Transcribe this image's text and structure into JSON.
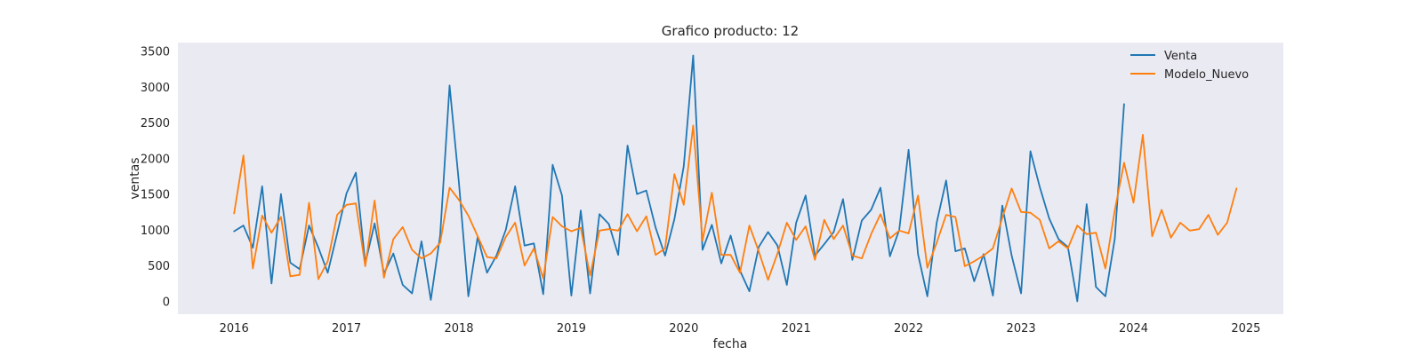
{
  "chart_data": {
    "type": "line",
    "title": "Grafico producto: 12",
    "xlabel": "fecha",
    "ylabel": "ventas",
    "x_ticks": [
      "2016",
      "2017",
      "2018",
      "2019",
      "2020",
      "2021",
      "2022",
      "2023",
      "2024",
      "2025"
    ],
    "y_ticks": [
      "0",
      "500",
      "1000",
      "1500",
      "2000",
      "2500",
      "3000",
      "3500"
    ],
    "ylim": [
      -180,
      3620
    ],
    "xlim": [
      "2015-07",
      "2025-05"
    ],
    "grid": false,
    "legend": "top-right",
    "x_start": "2016-01",
    "series": [
      {
        "name": "Venta",
        "color": "#1f77b4",
        "values": [
          980,
          1060,
          750,
          1610,
          250,
          1500,
          540,
          450,
          1060,
          750,
          400,
          950,
          1510,
          1800,
          530,
          1090,
          390,
          670,
          230,
          110,
          840,
          20,
          920,
          3020,
          1660,
          70,
          900,
          400,
          640,
          1000,
          1610,
          780,
          810,
          100,
          1910,
          1480,
          80,
          1270,
          110,
          1220,
          1080,
          650,
          2180,
          1500,
          1550,
          1030,
          640,
          1150,
          1890,
          3440,
          720,
          1070,
          530,
          920,
          430,
          140,
          760,
          970,
          780,
          230,
          1100,
          1480,
          640,
          800,
          970,
          1430,
          580,
          1130,
          1280,
          1590,
          630,
          1000,
          2120,
          660,
          70,
          1100,
          1690,
          700,
          740,
          280,
          660,
          80,
          1340,
          640,
          110,
          2100,
          1600,
          1160,
          870,
          760,
          0,
          1360,
          200,
          70,
          870,
          2760
        ]
      },
      {
        "name": "Modelo_Nuevo",
        "color": "#ff7f0e",
        "values": [
          1230,
          2040,
          460,
          1200,
          960,
          1180,
          350,
          370,
          1380,
          310,
          560,
          1210,
          1350,
          1370,
          490,
          1410,
          330,
          870,
          1040,
          720,
          600,
          670,
          820,
          1590,
          1420,
          1200,
          910,
          620,
          600,
          900,
          1100,
          500,
          740,
          320,
          1180,
          1050,
          980,
          1030,
          360,
          990,
          1010,
          990,
          1220,
          980,
          1190,
          650,
          740,
          1780,
          1350,
          2460,
          850,
          1520,
          650,
          650,
          400,
          1060,
          700,
          300,
          670,
          1100,
          860,
          1050,
          580,
          1140,
          870,
          1060,
          640,
          600,
          940,
          1220,
          880,
          990,
          950,
          1480,
          470,
          820,
          1210,
          1180,
          490,
          560,
          640,
          740,
          1170,
          1580,
          1250,
          1240,
          1140,
          740,
          840,
          740,
          1060,
          940,
          960,
          460,
          1270,
          1940,
          1380,
          2330,
          910,
          1280,
          890,
          1100,
          990,
          1010,
          1210,
          930,
          1100,
          1580
        ]
      }
    ]
  }
}
